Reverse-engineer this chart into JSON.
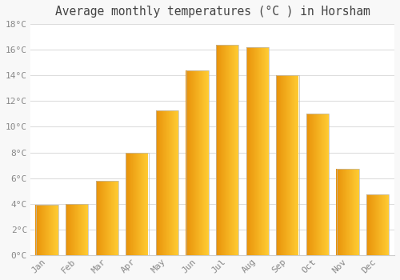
{
  "title": "Average monthly temperatures (°C ) in Horsham",
  "months": [
    "Jan",
    "Feb",
    "Mar",
    "Apr",
    "May",
    "Jun",
    "Jul",
    "Aug",
    "Sep",
    "Oct",
    "Nov",
    "Dec"
  ],
  "values": [
    3.9,
    4.0,
    5.8,
    8.0,
    11.3,
    14.4,
    16.4,
    16.2,
    14.0,
    11.0,
    6.7,
    4.7
  ],
  "bar_color_left": "#E8920A",
  "bar_color_right": "#FFCC33",
  "bar_color_mid": "#FFA500",
  "bar_edge_color": "#BBBBBB",
  "background_color": "#F8F8F8",
  "plot_bg_color": "#FFFFFF",
  "grid_color": "#DDDDDD",
  "title_color": "#444444",
  "tick_color": "#888888",
  "axis_color": "#CCCCCC",
  "ylim": [
    0,
    18
  ],
  "yticks": [
    0,
    2,
    4,
    6,
    8,
    10,
    12,
    14,
    16,
    18
  ],
  "title_fontsize": 10.5,
  "tick_fontsize": 8
}
